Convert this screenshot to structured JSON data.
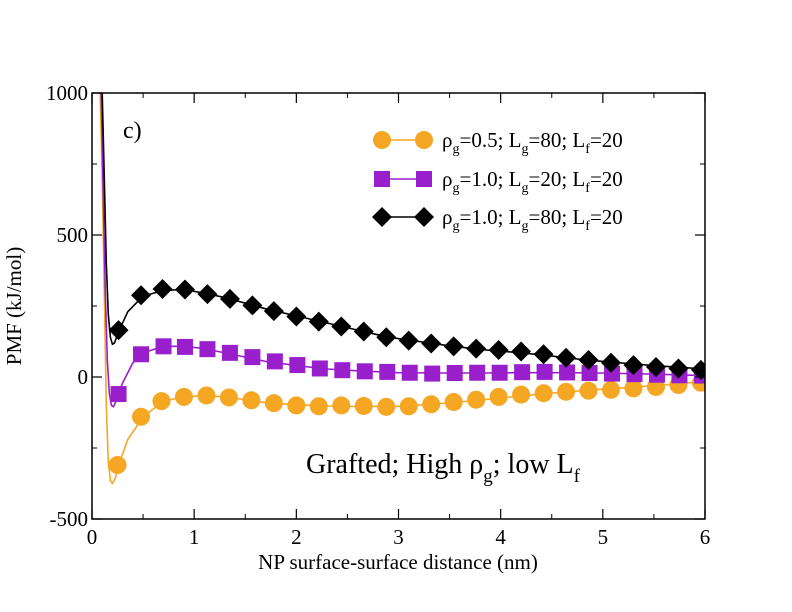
{
  "chart_data": {
    "type": "line",
    "panel_label": "c)",
    "xlabel": "NP surface-surface distance (nm)",
    "ylabel": "PMF (kJ/mol)",
    "xlim": [
      0,
      6
    ],
    "ylim": [
      -500,
      1000
    ],
    "x_ticks": [
      0,
      1,
      2,
      3,
      4,
      5,
      6
    ],
    "x_tick_labels": [
      "0",
      "1",
      "2",
      "3",
      "4",
      "5",
      "6"
    ],
    "y_ticks": [
      -500,
      0,
      500,
      1000
    ],
    "y_tick_labels": [
      "-500",
      "0",
      "500",
      "1000"
    ],
    "annotation": {
      "rho": "ρ",
      "sub_g": "g",
      "sub_f": "f",
      "grafted": "Grafted; High ",
      "semi": "; low L"
    },
    "series": [
      {
        "name": "rho_g=0.5; L_g=80; L_f=20",
        "legend": {
          "rho": "ρ",
          "s1": "g",
          "t1": "=0.5; L",
          "s2": "g",
          "t2": "=80; L",
          "s3": "f",
          "t3": "=20"
        },
        "color": "#f5a623",
        "marker": "circle",
        "curve": [
          [
            0.08,
            1000
          ],
          [
            0.1,
            700
          ],
          [
            0.12,
            300
          ],
          [
            0.14,
            -100
          ],
          [
            0.16,
            -300
          ],
          [
            0.18,
            -365
          ],
          [
            0.2,
            -375
          ],
          [
            0.23,
            -355
          ],
          [
            0.27,
            -300
          ],
          [
            0.35,
            -220
          ],
          [
            0.5,
            -140
          ],
          [
            0.7,
            -85
          ],
          [
            0.9,
            -70
          ],
          [
            1.1,
            -65
          ],
          [
            1.3,
            -70
          ],
          [
            1.5,
            -80
          ],
          [
            1.7,
            -90
          ],
          [
            2.0,
            -98
          ],
          [
            2.3,
            -102
          ],
          [
            2.6,
            -104
          ],
          [
            3.0,
            -103
          ],
          [
            3.3,
            -97
          ],
          [
            3.6,
            -88
          ],
          [
            4.0,
            -74
          ],
          [
            4.4,
            -60
          ],
          [
            4.8,
            -48
          ],
          [
            5.2,
            -38
          ],
          [
            5.6,
            -28
          ],
          [
            6.0,
            -15
          ]
        ],
        "markers": [
          [
            0.25,
            -310
          ],
          [
            0.48,
            -140
          ],
          [
            0.68,
            -85
          ],
          [
            0.9,
            -70
          ],
          [
            1.12,
            -65
          ],
          [
            1.34,
            -72
          ],
          [
            1.56,
            -82
          ],
          [
            1.78,
            -92
          ],
          [
            2.0,
            -100
          ],
          [
            2.22,
            -103
          ],
          [
            2.44,
            -100
          ],
          [
            2.66,
            -102
          ],
          [
            2.88,
            -105
          ],
          [
            3.1,
            -103
          ],
          [
            3.32,
            -96
          ],
          [
            3.54,
            -88
          ],
          [
            3.76,
            -80
          ],
          [
            3.98,
            -70
          ],
          [
            4.2,
            -62
          ],
          [
            4.42,
            -57
          ],
          [
            4.64,
            -52
          ],
          [
            4.86,
            -48
          ],
          [
            5.08,
            -45
          ],
          [
            5.3,
            -40
          ],
          [
            5.52,
            -35
          ],
          [
            5.74,
            -28
          ],
          [
            5.96,
            -20
          ]
        ]
      },
      {
        "name": "rho_g=1.0; L_g=20; L_f=20",
        "legend": {
          "rho": "ρ",
          "s1": "g",
          "t1": "=1.0; L",
          "s2": "g",
          "t2": "=20; L",
          "s3": "f",
          "t3": "=20"
        },
        "color": "#9a1fcc",
        "marker": "square",
        "curve": [
          [
            0.09,
            1000
          ],
          [
            0.11,
            650
          ],
          [
            0.13,
            300
          ],
          [
            0.15,
            60
          ],
          [
            0.17,
            -60
          ],
          [
            0.19,
            -100
          ],
          [
            0.21,
            -105
          ],
          [
            0.24,
            -80
          ],
          [
            0.3,
            -20
          ],
          [
            0.4,
            50
          ],
          [
            0.5,
            85
          ],
          [
            0.7,
            108
          ],
          [
            0.9,
            108
          ],
          [
            1.1,
            100
          ],
          [
            1.3,
            85
          ],
          [
            1.5,
            70
          ],
          [
            1.7,
            55
          ],
          [
            2.0,
            40
          ],
          [
            2.3,
            28
          ],
          [
            2.6,
            22
          ],
          [
            3.0,
            15
          ],
          [
            3.4,
            14
          ],
          [
            3.8,
            14
          ],
          [
            4.2,
            15
          ],
          [
            4.6,
            15
          ],
          [
            5.0,
            14
          ],
          [
            5.5,
            10
          ],
          [
            6.0,
            5
          ]
        ],
        "markers": [
          [
            0.26,
            -60
          ],
          [
            0.48,
            80
          ],
          [
            0.7,
            108
          ],
          [
            0.91,
            106
          ],
          [
            1.13,
            98
          ],
          [
            1.35,
            85
          ],
          [
            1.57,
            70
          ],
          [
            1.79,
            55
          ],
          [
            2.01,
            42
          ],
          [
            2.23,
            30
          ],
          [
            2.45,
            24
          ],
          [
            2.67,
            20
          ],
          [
            2.89,
            18
          ],
          [
            3.11,
            15
          ],
          [
            3.33,
            12
          ],
          [
            3.55,
            14
          ],
          [
            3.77,
            15
          ],
          [
            3.99,
            15
          ],
          [
            4.21,
            17
          ],
          [
            4.43,
            18
          ],
          [
            4.65,
            16
          ],
          [
            4.87,
            14
          ],
          [
            5.09,
            12
          ],
          [
            5.31,
            10
          ],
          [
            5.53,
            8
          ],
          [
            5.75,
            6
          ],
          [
            5.97,
            5
          ]
        ]
      },
      {
        "name": "rho_g=1.0; L_g=80; L_f=20",
        "legend": {
          "rho": "ρ",
          "s1": "g",
          "t1": "=1.0; L",
          "s2": "g",
          "t2": "=80; L",
          "s3": "f",
          "t3": "=20"
        },
        "color": "#000000",
        "marker": "diamond",
        "curve": [
          [
            0.1,
            1000
          ],
          [
            0.12,
            700
          ],
          [
            0.14,
            400
          ],
          [
            0.16,
            220
          ],
          [
            0.18,
            140
          ],
          [
            0.2,
            115
          ],
          [
            0.22,
            120
          ],
          [
            0.26,
            160
          ],
          [
            0.35,
            230
          ],
          [
            0.5,
            285
          ],
          [
            0.7,
            305
          ],
          [
            0.9,
            308
          ],
          [
            1.1,
            295
          ],
          [
            1.3,
            280
          ],
          [
            1.5,
            260
          ],
          [
            1.7,
            240
          ],
          [
            2.0,
            215
          ],
          [
            2.3,
            190
          ],
          [
            2.6,
            165
          ],
          [
            2.9,
            140
          ],
          [
            3.2,
            125
          ],
          [
            3.5,
            110
          ],
          [
            3.8,
            97
          ],
          [
            4.1,
            88
          ],
          [
            4.4,
            78
          ],
          [
            4.7,
            65
          ],
          [
            5.0,
            55
          ],
          [
            5.5,
            40
          ],
          [
            6.0,
            28
          ]
        ],
        "markers": [
          [
            0.26,
            165
          ],
          [
            0.48,
            288
          ],
          [
            0.69,
            310
          ],
          [
            0.91,
            308
          ],
          [
            1.13,
            292
          ],
          [
            1.35,
            275
          ],
          [
            1.57,
            252
          ],
          [
            1.78,
            232
          ],
          [
            2.0,
            213
          ],
          [
            2.22,
            195
          ],
          [
            2.44,
            178
          ],
          [
            2.66,
            160
          ],
          [
            2.88,
            140
          ],
          [
            3.1,
            128
          ],
          [
            3.32,
            118
          ],
          [
            3.54,
            108
          ],
          [
            3.76,
            100
          ],
          [
            3.98,
            95
          ],
          [
            4.2,
            90
          ],
          [
            4.42,
            80
          ],
          [
            4.64,
            68
          ],
          [
            4.86,
            60
          ],
          [
            5.08,
            50
          ],
          [
            5.3,
            42
          ],
          [
            5.52,
            35
          ],
          [
            5.74,
            30
          ],
          [
            5.96,
            25
          ]
        ]
      }
    ]
  }
}
